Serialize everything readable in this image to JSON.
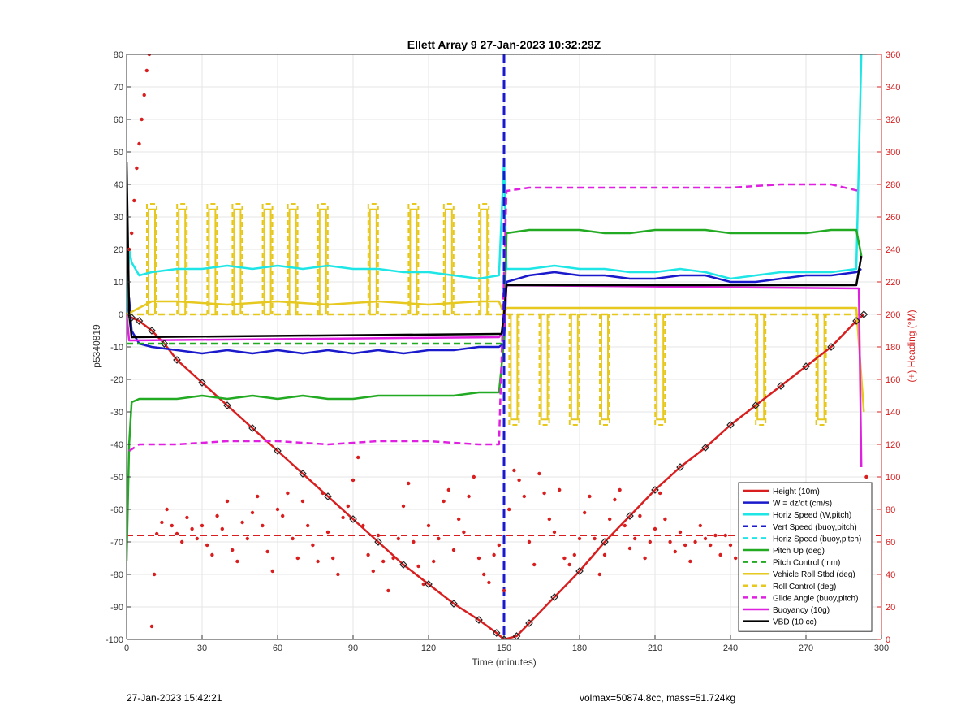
{
  "footer": {
    "timestamp": "27-Jan-2023 15:42:21",
    "stats": "volmax=50874.8cc, mass=51.724kg"
  },
  "chart_data": {
    "type": "line",
    "title": "Ellett Array 9 27-Jan-2023 10:32:29Z",
    "xlabel": "Time (minutes)",
    "ylabel": "p5340819",
    "y2label": "(+) Heading (°M)",
    "xlim": [
      0,
      300
    ],
    "ylim": [
      -100,
      80
    ],
    "y2lim": [
      0,
      360
    ],
    "xticks": [
      0,
      30,
      60,
      90,
      120,
      150,
      180,
      210,
      240,
      270,
      300
    ],
    "yticks": [
      -100,
      -90,
      -80,
      -70,
      -60,
      -50,
      -40,
      -30,
      -20,
      -10,
      0,
      10,
      20,
      30,
      40,
      50,
      60,
      70,
      80
    ],
    "y2ticks": [
      0,
      20,
      40,
      60,
      80,
      100,
      120,
      140,
      160,
      180,
      200,
      220,
      240,
      260,
      280,
      300,
      320,
      340,
      360
    ],
    "grid": true,
    "legend_position": "bottom-right",
    "colors": {
      "axis_right": "#d62020",
      "grid": "#e6e6e6"
    },
    "legend": [
      {
        "label": "Height (10m)",
        "color": "#d81e1e",
        "style": "solid"
      },
      {
        "label": "W = dz/dt (cm/s)",
        "color": "#1a1acc",
        "style": "solid"
      },
      {
        "label": "Horiz Speed (W,pitch)",
        "color": "#1ee6e6",
        "style": "solid"
      },
      {
        "label": "Vert Speed (buoy,pitch)",
        "color": "#1a1acc",
        "style": "dashed"
      },
      {
        "label": "Horiz Speed (buoy,pitch)",
        "color": "#1ee6e6",
        "style": "dashed"
      },
      {
        "label": "Pitch Up (deg)",
        "color": "#22aa22",
        "style": "solid"
      },
      {
        "label": "Pitch Control (mm)",
        "color": "#22aa22",
        "style": "dashed"
      },
      {
        "label": "Vehicle Roll Stbd (deg)",
        "color": "#e6c81e",
        "style": "solid"
      },
      {
        "label": "Roll Control (deg)",
        "color": "#e6c81e",
        "style": "dashed"
      },
      {
        "label": "Glide Angle (buoy,pitch)",
        "color": "#e020e0",
        "style": "dashed"
      },
      {
        "label": "Buoyancy (10g)",
        "color": "#e020e0",
        "style": "solid"
      },
      {
        "label": "VBD (10 cc)",
        "color": "#000000",
        "style": "solid"
      }
    ],
    "series": [
      {
        "name": "Height (10m)",
        "color": "#d81e1e",
        "x": [
          0,
          2,
          5,
          10,
          15,
          20,
          30,
          40,
          50,
          60,
          70,
          80,
          90,
          100,
          110,
          120,
          130,
          140,
          147,
          150,
          155,
          160,
          170,
          180,
          190,
          200,
          210,
          220,
          230,
          240,
          250,
          260,
          270,
          280,
          290,
          293
        ],
        "y": [
          0,
          -1,
          -2,
          -5,
          -9,
          -14,
          -21,
          -28,
          -35,
          -42,
          -49,
          -56,
          -63,
          -70,
          -77,
          -83,
          -89,
          -94,
          -98,
          -100,
          -99,
          -95,
          -87,
          -79,
          -70,
          -62,
          -54,
          -47,
          -41,
          -34,
          -28,
          -22,
          -16,
          -10,
          -2,
          0
        ]
      },
      {
        "name": "W = dz/dt (cm/s)",
        "color": "#1a1acc",
        "x": [
          0,
          1,
          2,
          5,
          10,
          20,
          30,
          40,
          50,
          60,
          70,
          80,
          90,
          100,
          110,
          120,
          130,
          140,
          148,
          150,
          151,
          160,
          170,
          180,
          190,
          200,
          210,
          220,
          230,
          240,
          250,
          260,
          270,
          280,
          290,
          292
        ],
        "y": [
          0,
          5,
          -5,
          -9,
          -10,
          -11,
          -12,
          -11,
          -12,
          -11,
          -12,
          -11,
          -12,
          -11,
          -12,
          -11,
          -11,
          -10,
          -10,
          -9,
          10,
          12,
          13,
          12,
          12,
          11,
          11,
          12,
          12,
          10,
          10,
          11,
          12,
          12,
          13,
          14
        ]
      },
      {
        "name": "Horiz Speed (W,pitch)",
        "color": "#1ee6e6",
        "x": [
          0,
          1,
          2,
          5,
          10,
          20,
          30,
          40,
          50,
          60,
          70,
          80,
          90,
          100,
          110,
          120,
          130,
          140,
          148,
          150,
          151,
          160,
          170,
          180,
          190,
          200,
          210,
          220,
          230,
          240,
          250,
          260,
          270,
          280,
          290,
          292
        ],
        "y": [
          0,
          20,
          16,
          12,
          13,
          14,
          14,
          15,
          14,
          15,
          14,
          15,
          14,
          14,
          13,
          13,
          12,
          11,
          12,
          48,
          14,
          14,
          15,
          14,
          14,
          13,
          13,
          14,
          13,
          11,
          12,
          13,
          13,
          13,
          14,
          80
        ]
      },
      {
        "name": "Pitch Up (deg)",
        "color": "#22aa22",
        "x": [
          0,
          1,
          2,
          5,
          10,
          20,
          30,
          40,
          50,
          60,
          70,
          80,
          90,
          100,
          110,
          120,
          130,
          140,
          148,
          150,
          151,
          160,
          170,
          180,
          190,
          200,
          210,
          220,
          230,
          240,
          250,
          260,
          270,
          280,
          290,
          292
        ],
        "y": [
          -76,
          -40,
          -27,
          -26,
          -26,
          -26,
          -25,
          -26,
          -25,
          -26,
          -25,
          -26,
          -26,
          -25,
          -25,
          -25,
          -25,
          -24,
          -24,
          -8,
          25,
          26,
          26,
          26,
          25,
          25,
          26,
          26,
          26,
          25,
          25,
          25,
          25,
          26,
          26,
          18
        ]
      },
      {
        "name": "Pitch Control (mm)",
        "color": "#22aa22",
        "style": "dashed",
        "x": [
          0,
          2,
          5,
          150
        ],
        "y": [
          -9,
          -9,
          -9,
          -9
        ]
      },
      {
        "name": "Vehicle Roll Stbd (deg)",
        "color": "#e6c81e",
        "x": [
          0,
          10,
          20,
          40,
          60,
          80,
          100,
          120,
          140,
          148,
          150,
          151,
          160,
          180,
          200,
          220,
          240,
          260,
          280,
          290,
          293
        ],
        "y": [
          0,
          4,
          4,
          3,
          4,
          3,
          4,
          3,
          4,
          4,
          0,
          2,
          2,
          2,
          2,
          2,
          2,
          2,
          2,
          2,
          -30
        ]
      },
      {
        "name": "Roll Control (deg)",
        "color": "#e6c81e",
        "style": "dashed",
        "x": [
          0,
          150,
          151,
          293
        ],
        "y": [
          0,
          0,
          0,
          0
        ]
      },
      {
        "name": "Glide Angle (buoy,pitch)",
        "color": "#e020e0",
        "style": "dashed",
        "x": [
          1,
          5,
          10,
          20,
          40,
          60,
          80,
          100,
          120,
          140,
          148,
          151,
          160,
          180,
          200,
          220,
          240,
          260,
          280,
          291
        ],
        "y": [
          -42,
          -40,
          -40,
          -40,
          -39,
          -39,
          -40,
          -39,
          -39,
          -40,
          -40,
          38,
          39,
          39,
          39,
          39,
          39,
          40,
          40,
          38
        ]
      },
      {
        "name": "Buoyancy (10g)",
        "color": "#e020e0",
        "x": [
          0,
          1,
          2,
          148,
          149,
          150,
          151,
          291,
          292
        ],
        "y": [
          0,
          -8,
          -8,
          -7,
          -6,
          -5,
          9,
          8,
          -47
        ]
      },
      {
        "name": "VBD (10 cc)",
        "color": "#000000",
        "x": [
          0,
          1,
          2,
          148,
          149,
          150,
          151,
          290,
          292
        ],
        "y": [
          47,
          0,
          -7,
          -6,
          -6,
          0,
          9,
          9,
          18
        ]
      }
    ],
    "roll_spikes": [
      {
        "x": 10,
        "y": 34
      },
      {
        "x": 22,
        "y": 34
      },
      {
        "x": 34,
        "y": 34
      },
      {
        "x": 44,
        "y": 34
      },
      {
        "x": 56,
        "y": 34
      },
      {
        "x": 66,
        "y": 34
      },
      {
        "x": 78,
        "y": 34
      },
      {
        "x": 98,
        "y": 34
      },
      {
        "x": 114,
        "y": 34
      },
      {
        "x": 128,
        "y": 34
      },
      {
        "x": 142,
        "y": 34
      },
      {
        "x": 154,
        "y": -34
      },
      {
        "x": 166,
        "y": -34
      },
      {
        "x": 178,
        "y": -34
      },
      {
        "x": 190,
        "y": -34
      },
      {
        "x": 212,
        "y": -34
      },
      {
        "x": 252,
        "y": -34
      },
      {
        "x": 276,
        "y": -34
      }
    ],
    "vertical_line": {
      "x": 150,
      "color": "#1a1acc"
    },
    "heading_mean": {
      "y2": 64,
      "color": "#d81e1e"
    },
    "heading_points": {
      "x": [
        1,
        2,
        3,
        4,
        5,
        6,
        7,
        8,
        9,
        10,
        11,
        12,
        14,
        16,
        18,
        20,
        22,
        24,
        26,
        28,
        30,
        32,
        34,
        36,
        38,
        40,
        42,
        44,
        46,
        48,
        50,
        52,
        54,
        56,
        58,
        60,
        62,
        64,
        66,
        68,
        70,
        72,
        74,
        76,
        78,
        80,
        82,
        84,
        86,
        88,
        90,
        92,
        94,
        96,
        98,
        100,
        102,
        104,
        106,
        108,
        110,
        112,
        114,
        116,
        118,
        120,
        122,
        124,
        126,
        128,
        130,
        132,
        134,
        136,
        138,
        140,
        142,
        144,
        146,
        148,
        150,
        152,
        154,
        156,
        158,
        160,
        162,
        164,
        166,
        168,
        170,
        172,
        174,
        176,
        178,
        180,
        182,
        184,
        186,
        188,
        190,
        192,
        194,
        196,
        198,
        200,
        202,
        204,
        206,
        208,
        210,
        212,
        214,
        216,
        218,
        220,
        222,
        224,
        226,
        228,
        230,
        232,
        234,
        236,
        238,
        240,
        242,
        244,
        246,
        248,
        250,
        252,
        254,
        256,
        258,
        260,
        262,
        264,
        266,
        268,
        270,
        272,
        274,
        276,
        278,
        280,
        282,
        284,
        286,
        288,
        290,
        292,
        293,
        294
      ],
      "y": [
        240,
        250,
        270,
        290,
        305,
        320,
        335,
        350,
        360,
        8,
        40,
        65,
        72,
        80,
        70,
        65,
        60,
        75,
        68,
        62,
        70,
        58,
        52,
        76,
        68,
        85,
        55,
        48,
        72,
        62,
        78,
        88,
        70,
        54,
        42,
        80,
        76,
        90,
        62,
        50,
        85,
        70,
        58,
        48,
        90,
        66,
        50,
        40,
        75,
        82,
        98,
        112,
        70,
        52,
        42,
        64,
        48,
        30,
        50,
        62,
        82,
        96,
        60,
        45,
        34,
        70,
        48,
        62,
        85,
        92,
        55,
        74,
        66,
        88,
        100,
        50,
        40,
        35,
        52,
        58,
        30,
        80,
        104,
        98,
        88,
        60,
        46,
        102,
        90,
        74,
        66,
        92,
        50,
        46,
        52,
        62,
        78,
        88,
        62,
        40,
        52,
        74,
        86,
        92,
        70,
        56,
        62,
        76,
        50,
        60,
        68,
        90,
        74,
        60,
        54,
        66,
        58,
        48,
        60,
        70,
        62,
        58,
        64,
        52,
        64,
        58,
        50,
        66,
        60,
        54,
        52,
        62,
        66,
        56,
        48,
        54,
        58,
        52,
        60,
        64,
        60,
        54,
        52,
        58,
        62,
        52,
        56,
        60,
        54,
        48,
        70,
        80,
        94,
        100
      ]
    }
  }
}
